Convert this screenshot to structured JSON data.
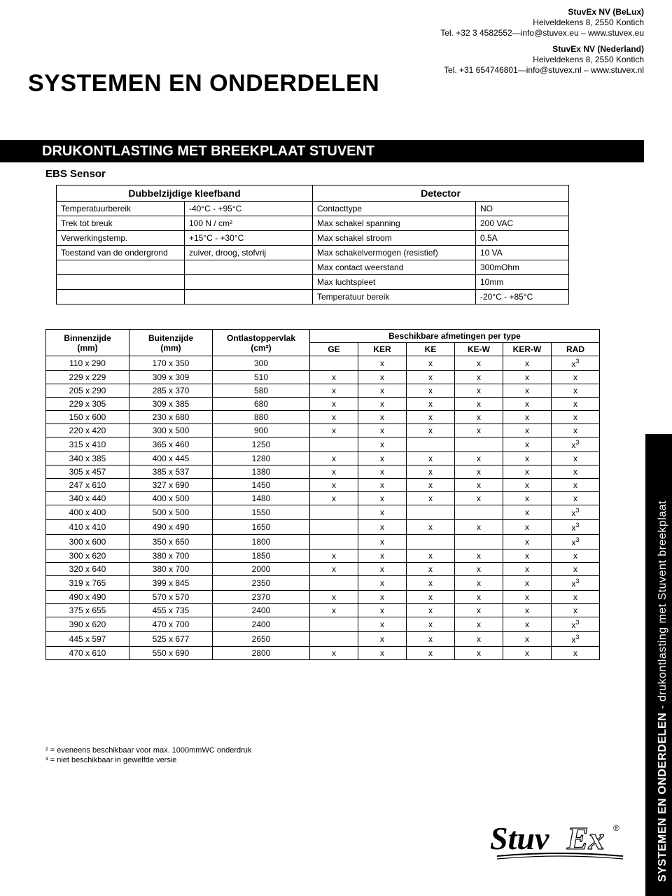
{
  "company": {
    "belux": {
      "name": "StuvEx NV (BeLux)",
      "addr": "Heiveldekens 8, 2550 Kontich",
      "contact": "Tel. +32 3 4582552—info@stuvex.eu – www.stuvex.eu"
    },
    "nl": {
      "name": "StuvEx NV (Nederland)",
      "addr": "Heiveldekens 8, 2550 Kontich",
      "contact": "Tel. +31 654746801—info@stuvex.nl – www.stuvex.nl"
    }
  },
  "mainTitle": "SYSTEMEN EN ONDERDELEN",
  "barTitle": "DRUKONTLASTING MET BREEKPLAAT STUVENT",
  "ebs": "EBS Sensor",
  "sensor": {
    "h1": "Dubbelzijdige kleefband",
    "h2": "Detector",
    "rows": [
      [
        "Temperatuurbereik",
        "-40°C - +95°C",
        "Contacttype",
        "NO"
      ],
      [
        "Trek tot breuk",
        "100 N / cm²",
        "Max schakel spanning",
        "200 VAC"
      ],
      [
        "Verwerkingstemp.",
        "+15°C - +30°C",
        "Max schakel stroom",
        "0.5A"
      ],
      [
        "Toestand van de ondergrond",
        "zuiver, droog, stofvrij",
        "Max schakelvermogen (resistief)",
        "10 VA"
      ],
      [
        "",
        "",
        "Max contact weerstand",
        "300mOhm"
      ],
      [
        "",
        "",
        "Max luchtspleet",
        "10mm"
      ],
      [
        "",
        "",
        "Temperatuur bereik",
        "-20°C - +85°C"
      ]
    ]
  },
  "dims": {
    "h_binnen": "Binnenzijde\n(mm)",
    "h_buiten": "Buitenzijde\n(mm)",
    "h_ov": "Ontlastoppervlak\n(cm²)",
    "h_besch": "Beschikbare afmetingen per type",
    "sub": [
      "GE",
      "KER",
      "KE",
      "KE-W",
      "KER-W",
      "RAD"
    ],
    "rows": [
      [
        "110 x 290",
        "170 x 350",
        "300",
        "",
        "x",
        "x",
        "x",
        "x",
        "x³"
      ],
      [
        "229 x 229",
        "309 x 309",
        "510",
        "x",
        "x",
        "x",
        "x",
        "x",
        "x"
      ],
      [
        "205 x 290",
        "285 x 370",
        "580",
        "x",
        "x",
        "x",
        "x",
        "x",
        "x"
      ],
      [
        "229 x 305",
        "309 x 385",
        "680",
        "x",
        "x",
        "x",
        "x",
        "x",
        "x"
      ],
      [
        "150 x 600",
        "230 x 680",
        "880",
        "x",
        "x",
        "x",
        "x",
        "x",
        "x"
      ],
      [
        "220 x 420",
        "300 x 500",
        "900",
        "x",
        "x",
        "x",
        "x",
        "x",
        "x"
      ],
      [
        "315 x 410",
        "365 x 460",
        "1250",
        "",
        "x",
        "",
        "",
        "x",
        "x³"
      ],
      [
        "340 x 385",
        "400 x 445",
        "1280",
        "x",
        "x",
        "x",
        "x",
        "x",
        "x"
      ],
      [
        "305 x 457",
        "385 x 537",
        "1380",
        "x",
        "x",
        "x",
        "x",
        "x",
        "x"
      ],
      [
        "247 x 610",
        "327 x 690",
        "1450",
        "x",
        "x",
        "x",
        "x",
        "x",
        "x"
      ],
      [
        "340 x 440",
        "400 x 500",
        "1480",
        "x",
        "x",
        "x",
        "x",
        "x",
        "x"
      ],
      [
        "400 x 400",
        "500 x 500",
        "1550",
        "",
        "x",
        "",
        "",
        "x",
        "x³"
      ],
      [
        "410 x 410",
        "490 x 490",
        "1650",
        "",
        "x",
        "x",
        "x",
        "x",
        "x³"
      ],
      [
        "300 x 600",
        "350 x 650",
        "1800",
        "",
        "x",
        "",
        "",
        "x",
        "x³"
      ],
      [
        "300 x 620",
        "380 x 700",
        "1850",
        "x",
        "x",
        "x",
        "x",
        "x",
        "x"
      ],
      [
        "320 x 640",
        "380 x 700",
        "2000",
        "x",
        "x",
        "x",
        "x",
        "x",
        "x"
      ],
      [
        "319 x 765",
        "399 x 845",
        "2350",
        "",
        "x",
        "x",
        "x",
        "x",
        "x³"
      ],
      [
        "490 x 490",
        "570 x 570",
        "2370",
        "x",
        "x",
        "x",
        "x",
        "x",
        "x"
      ],
      [
        "375 x 655",
        "455 x 735",
        "2400",
        "x",
        "x",
        "x",
        "x",
        "x",
        "x"
      ],
      [
        "390 x 620",
        "470 x 700",
        "2400",
        "",
        "x",
        "x",
        "x",
        "x",
        "x³"
      ],
      [
        "445 x 597",
        "525 x 677",
        "2650",
        "",
        "x",
        "x",
        "x",
        "x",
        "x³"
      ],
      [
        "470 x 610",
        "550 x 690",
        "2800",
        "x",
        "x",
        "x",
        "x",
        "x",
        "x"
      ]
    ]
  },
  "foot2": "² = eveneens beschikbaar voor max. 1000mmWC onderdruk",
  "foot3": "³ = niet beschikbaar in gewelfde versie",
  "sideMain": "SYSTEMEN EN ONDERDELEN",
  "sideSub": "  -  drukontlasting met Stuvent breekplaat",
  "logo": {
    "text1": "Stuv",
    "text2": "Ex"
  },
  "colors": {
    "black": "#000000",
    "white": "#ffffff"
  }
}
